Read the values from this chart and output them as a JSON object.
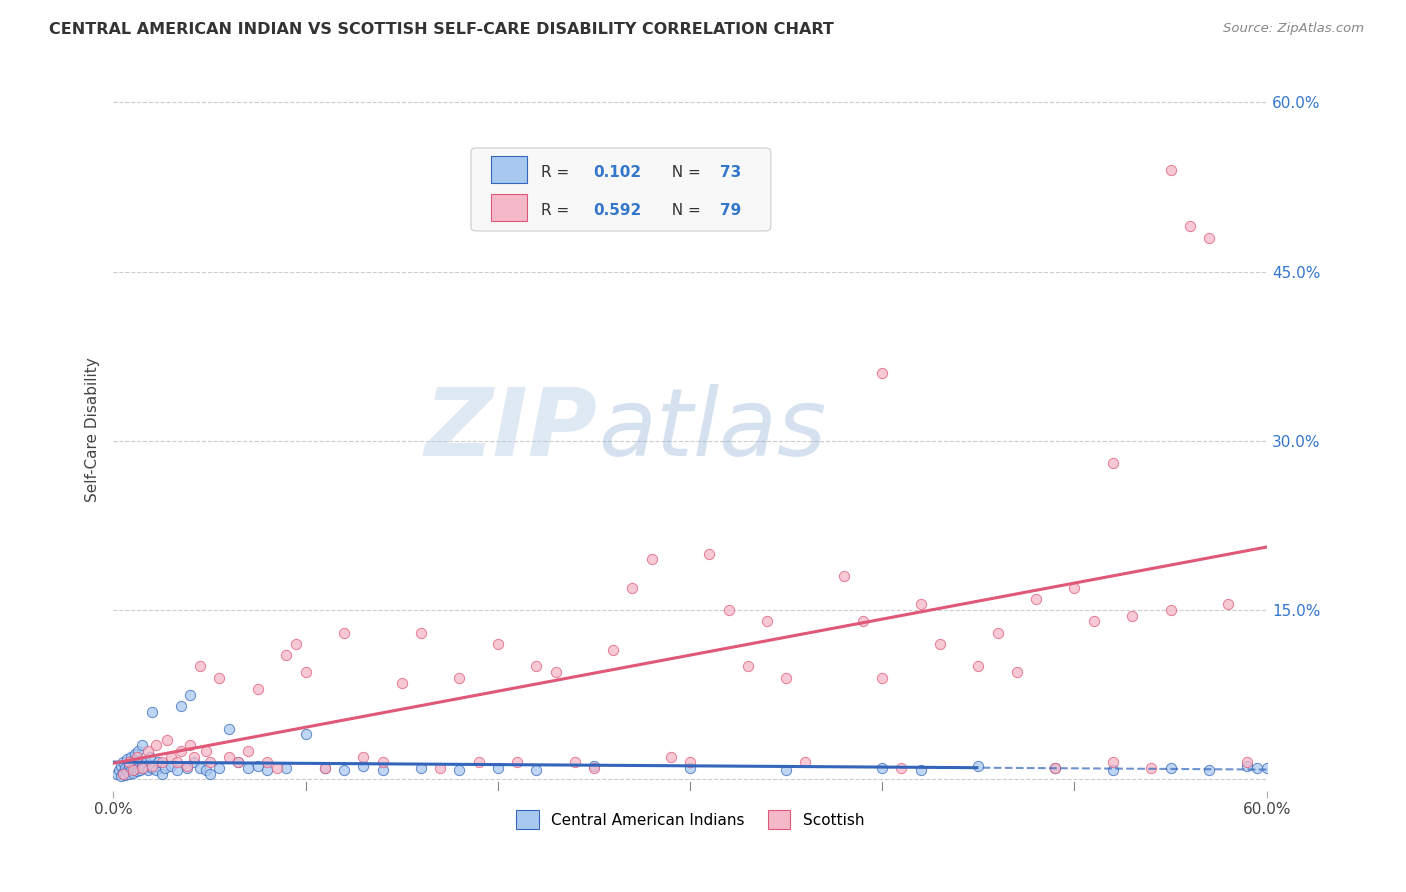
{
  "title": "CENTRAL AMERICAN INDIAN VS SCOTTISH SELF-CARE DISABILITY CORRELATION CHART",
  "source": "Source: ZipAtlas.com",
  "ylabel": "Self-Care Disability",
  "xlim": [
    0.0,
    0.6
  ],
  "ylim": [
    -0.01,
    0.63
  ],
  "ytick_positions": [
    0.0,
    0.15,
    0.3,
    0.45,
    0.6
  ],
  "grid_color": "#cccccc",
  "bg_color": "#ffffff",
  "blue_color": "#A8C8F0",
  "pink_color": "#F5B8C8",
  "blue_line_color": "#3366BB",
  "pink_line_color": "#E05878",
  "R_blue": "0.102",
  "N_blue": "73",
  "R_pink": "0.592",
  "N_pink": "79",
  "legend_label_blue": "Central American Indians",
  "legend_label_pink": "Scottish",
  "blue_x": [
    0.002,
    0.003,
    0.004,
    0.004,
    0.005,
    0.005,
    0.006,
    0.006,
    0.007,
    0.007,
    0.008,
    0.008,
    0.009,
    0.009,
    0.01,
    0.01,
    0.011,
    0.011,
    0.012,
    0.012,
    0.013,
    0.013,
    0.014,
    0.015,
    0.015,
    0.016,
    0.017,
    0.018,
    0.019,
    0.02,
    0.02,
    0.022,
    0.023,
    0.025,
    0.027,
    0.03,
    0.033,
    0.035,
    0.038,
    0.04,
    0.042,
    0.045,
    0.048,
    0.05,
    0.055,
    0.06,
    0.065,
    0.07,
    0.075,
    0.08,
    0.09,
    0.1,
    0.11,
    0.12,
    0.13,
    0.14,
    0.16,
    0.18,
    0.2,
    0.22,
    0.25,
    0.3,
    0.35,
    0.4,
    0.42,
    0.45,
    0.49,
    0.52,
    0.55,
    0.57,
    0.59,
    0.595,
    0.6
  ],
  "blue_y": [
    0.005,
    0.008,
    0.003,
    0.012,
    0.006,
    0.015,
    0.004,
    0.01,
    0.007,
    0.018,
    0.005,
    0.013,
    0.008,
    0.02,
    0.006,
    0.016,
    0.009,
    0.022,
    0.007,
    0.017,
    0.01,
    0.025,
    0.008,
    0.012,
    0.03,
    0.01,
    0.015,
    0.008,
    0.02,
    0.01,
    0.06,
    0.008,
    0.015,
    0.005,
    0.01,
    0.012,
    0.008,
    0.065,
    0.01,
    0.075,
    0.015,
    0.01,
    0.008,
    0.005,
    0.01,
    0.045,
    0.015,
    0.01,
    0.012,
    0.008,
    0.01,
    0.04,
    0.01,
    0.008,
    0.012,
    0.008,
    0.01,
    0.008,
    0.01,
    0.008,
    0.012,
    0.01,
    0.008,
    0.01,
    0.008,
    0.012,
    0.01,
    0.008,
    0.01,
    0.008,
    0.012,
    0.01,
    0.01
  ],
  "pink_x": [
    0.005,
    0.008,
    0.01,
    0.012,
    0.015,
    0.018,
    0.02,
    0.022,
    0.025,
    0.028,
    0.03,
    0.033,
    0.035,
    0.038,
    0.04,
    0.042,
    0.045,
    0.048,
    0.05,
    0.055,
    0.06,
    0.065,
    0.07,
    0.075,
    0.08,
    0.085,
    0.09,
    0.095,
    0.1,
    0.11,
    0.12,
    0.13,
    0.14,
    0.15,
    0.16,
    0.17,
    0.18,
    0.19,
    0.2,
    0.21,
    0.22,
    0.23,
    0.24,
    0.25,
    0.26,
    0.27,
    0.28,
    0.29,
    0.3,
    0.31,
    0.32,
    0.33,
    0.34,
    0.35,
    0.36,
    0.38,
    0.39,
    0.4,
    0.41,
    0.42,
    0.43,
    0.45,
    0.46,
    0.47,
    0.48,
    0.49,
    0.5,
    0.51,
    0.52,
    0.53,
    0.54,
    0.55,
    0.56,
    0.57,
    0.58,
    0.59,
    0.52,
    0.4,
    0.55
  ],
  "pink_y": [
    0.005,
    0.015,
    0.008,
    0.02,
    0.01,
    0.025,
    0.012,
    0.03,
    0.015,
    0.035,
    0.02,
    0.015,
    0.025,
    0.012,
    0.03,
    0.02,
    0.1,
    0.025,
    0.015,
    0.09,
    0.02,
    0.015,
    0.025,
    0.08,
    0.015,
    0.01,
    0.11,
    0.12,
    0.095,
    0.01,
    0.13,
    0.02,
    0.015,
    0.085,
    0.13,
    0.01,
    0.09,
    0.015,
    0.12,
    0.015,
    0.1,
    0.095,
    0.015,
    0.01,
    0.115,
    0.17,
    0.195,
    0.02,
    0.015,
    0.2,
    0.15,
    0.1,
    0.14,
    0.09,
    0.015,
    0.18,
    0.14,
    0.09,
    0.01,
    0.155,
    0.12,
    0.1,
    0.13,
    0.095,
    0.16,
    0.01,
    0.17,
    0.14,
    0.015,
    0.145,
    0.01,
    0.54,
    0.49,
    0.48,
    0.155,
    0.015,
    0.28,
    0.36,
    0.15
  ]
}
